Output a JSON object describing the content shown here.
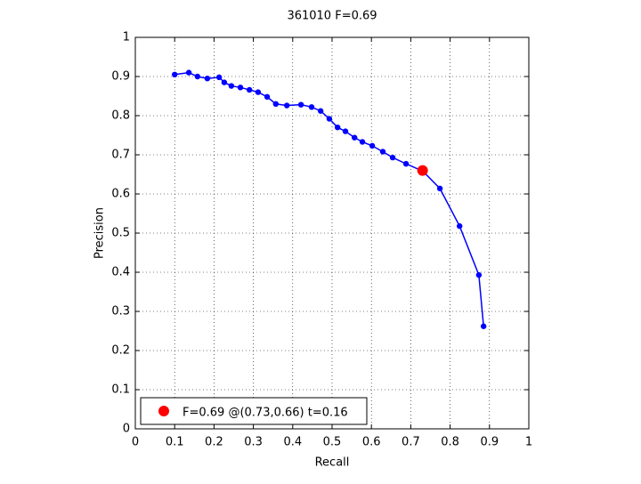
{
  "chart_data": {
    "type": "line",
    "title": "361010 F=0.69",
    "xlabel": "Recall",
    "ylabel": "Precision",
    "xlim": [
      0,
      1
    ],
    "ylim": [
      0,
      1
    ],
    "xticks": [
      0,
      0.1,
      0.2,
      0.3,
      0.4,
      0.5,
      0.6,
      0.7,
      0.8,
      0.9,
      1
    ],
    "yticks": [
      0,
      0.1,
      0.2,
      0.3,
      0.4,
      0.5,
      0.6,
      0.7,
      0.8,
      0.9,
      1
    ],
    "grid": true,
    "legend": "lower left",
    "series": [
      {
        "color": "#0000ff",
        "x": [
          0.1,
          0.136,
          0.158,
          0.183,
          0.213,
          0.226,
          0.244,
          0.267,
          0.29,
          0.312,
          0.335,
          0.357,
          0.385,
          0.421,
          0.448,
          0.471,
          0.493,
          0.514,
          0.534,
          0.557,
          0.577,
          0.602,
          0.629,
          0.654,
          0.688,
          0.731,
          0.774,
          0.824,
          0.873,
          0.885
        ],
        "values": [
          0.905,
          0.91,
          0.9,
          0.895,
          0.898,
          0.885,
          0.876,
          0.872,
          0.866,
          0.86,
          0.848,
          0.83,
          0.826,
          0.828,
          0.822,
          0.812,
          0.792,
          0.77,
          0.76,
          0.744,
          0.733,
          0.723,
          0.708,
          0.693,
          0.677,
          0.658,
          0.614,
          0.518,
          0.393,
          0.262
        ]
      },
      {
        "name": "F=0.69 @(0.73,0.66) t=0.16",
        "color": "#ff0000",
        "x": [
          0.73
        ],
        "values": [
          0.66
        ]
      }
    ]
  }
}
